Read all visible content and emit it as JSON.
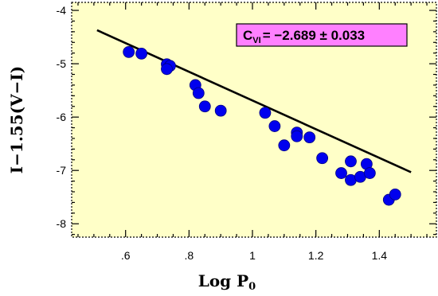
{
  "chart_data": {
    "type": "scatter",
    "title": "",
    "xlabel_main": "Log P",
    "xlabel_sub": "0",
    "ylabel": "I−1.55(V−I)",
    "xlim": [
      0.43,
      1.58
    ],
    "ylim": [
      -8.25,
      -3.85
    ],
    "y_inverted": true,
    "grid": false,
    "x_ticks": [
      0.6,
      0.8,
      1.0,
      1.2,
      1.4
    ],
    "x_tick_labels": [
      ".6",
      ".8",
      "1",
      "1.2",
      "1.4"
    ],
    "y_ticks": [
      -4,
      -5,
      -6,
      -7,
      -8
    ],
    "y_tick_labels": [
      "-4",
      "-5",
      "-6",
      "-7",
      "-8"
    ],
    "background_color": "#ffffc8",
    "point_color": "#0000ee",
    "fit_color": "#000000",
    "annotation": {
      "prefix": "C",
      "subscript": "VI",
      "text": "= −2.689 ± 0.033",
      "bg_color": "#ff80ff"
    },
    "fit": {
      "x_start": 0.51,
      "x_end": 1.5,
      "slope": -2.689,
      "intercept": -3.0
    },
    "points": [
      {
        "x": 0.61,
        "y": -4.78
      },
      {
        "x": 0.65,
        "y": -4.81
      },
      {
        "x": 0.73,
        "y": -5.01
      },
      {
        "x": 0.74,
        "y": -5.04
      },
      {
        "x": 0.73,
        "y": -5.1
      },
      {
        "x": 0.82,
        "y": -5.4
      },
      {
        "x": 0.83,
        "y": -5.55
      },
      {
        "x": 0.85,
        "y": -5.8
      },
      {
        "x": 0.9,
        "y": -5.88
      },
      {
        "x": 1.04,
        "y": -5.92
      },
      {
        "x": 1.07,
        "y": -6.17
      },
      {
        "x": 1.1,
        "y": -6.53
      },
      {
        "x": 1.14,
        "y": -6.29
      },
      {
        "x": 1.14,
        "y": -6.36
      },
      {
        "x": 1.18,
        "y": -6.38
      },
      {
        "x": 1.22,
        "y": -6.77
      },
      {
        "x": 1.28,
        "y": -7.05
      },
      {
        "x": 1.31,
        "y": -6.83
      },
      {
        "x": 1.31,
        "y": -7.18
      },
      {
        "x": 1.34,
        "y": -7.12
      },
      {
        "x": 1.36,
        "y": -6.88
      },
      {
        "x": 1.37,
        "y": -7.05
      },
      {
        "x": 1.43,
        "y": -7.55
      },
      {
        "x": 1.45,
        "y": -7.45
      }
    ]
  }
}
